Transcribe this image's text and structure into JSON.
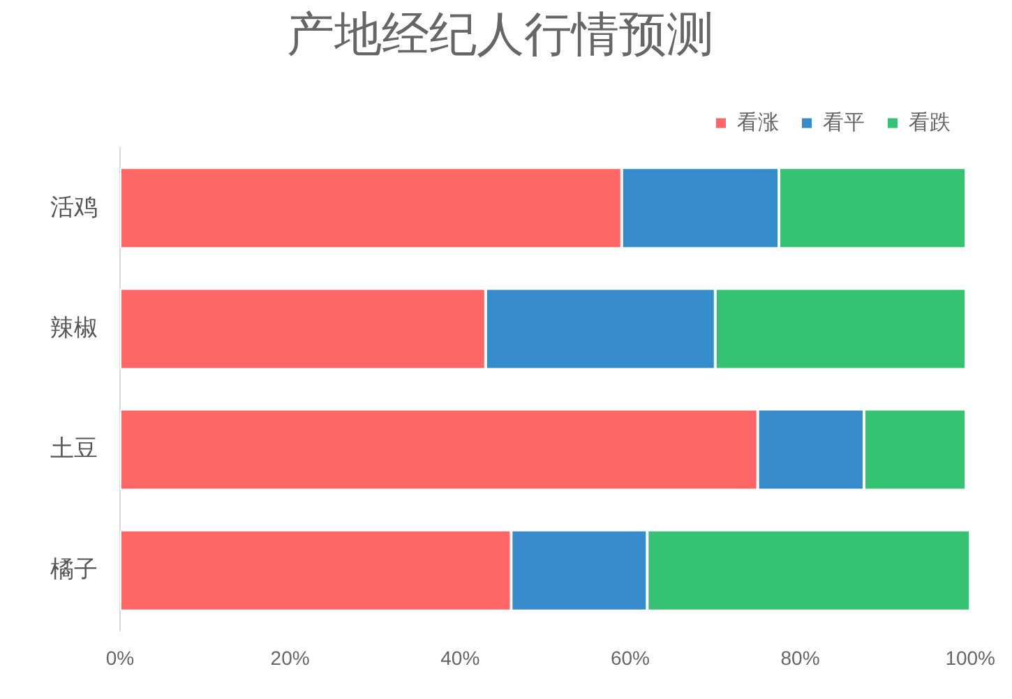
{
  "chart_data": {
    "type": "bar",
    "title": "产地经纪人行情预测",
    "categories": [
      "活鸡",
      "辣椒",
      "土豆",
      "橘子"
    ],
    "orientation": "horizontal",
    "stacked": true,
    "series": [
      {
        "name": "看涨",
        "color": "#ff6666",
        "values": [
          59,
          43,
          75,
          46
        ]
      },
      {
        "name": "看平",
        "color": "#368ccb",
        "values": [
          18.5,
          27,
          12.5,
          16
        ]
      },
      {
        "name": "看跌",
        "color": "#35c272",
        "values": [
          22,
          29.5,
          12,
          38
        ]
      }
    ],
    "xlim": [
      0,
      100
    ],
    "xticks": [
      {
        "value": 0,
        "label": "0%"
      },
      {
        "value": 20,
        "label": "20%"
      },
      {
        "value": 40,
        "label": "40%"
      },
      {
        "value": 60,
        "label": "60%"
      },
      {
        "value": 80,
        "label": "80%"
      },
      {
        "value": 100,
        "label": "100%"
      }
    ],
    "legend": "top right",
    "grid": false
  }
}
